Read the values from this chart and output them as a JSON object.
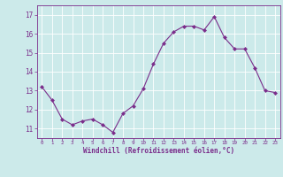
{
  "x": [
    0,
    1,
    2,
    3,
    4,
    5,
    6,
    7,
    8,
    9,
    10,
    11,
    12,
    13,
    14,
    15,
    16,
    17,
    18,
    19,
    20,
    21,
    22,
    23
  ],
  "y": [
    13.2,
    12.5,
    11.5,
    11.2,
    11.4,
    11.5,
    11.2,
    10.8,
    11.8,
    12.2,
    13.1,
    14.4,
    15.5,
    16.1,
    16.4,
    16.4,
    16.2,
    16.9,
    15.8,
    15.2,
    15.2,
    14.2,
    13.0,
    12.9
  ],
  "line_color": "#7b2d8b",
  "marker": "D",
  "marker_size": 2,
  "bg_color": "#cceaea",
  "grid_color": "#b0d8d8",
  "ylim": [
    10.5,
    17.5
  ],
  "yticks": [
    11,
    12,
    13,
    14,
    15,
    16,
    17
  ],
  "xticks": [
    0,
    1,
    2,
    3,
    4,
    5,
    6,
    7,
    8,
    9,
    10,
    11,
    12,
    13,
    14,
    15,
    16,
    17,
    18,
    19,
    20,
    21,
    22,
    23
  ],
  "xlabel": "Windchill (Refroidissement éolien,°C)",
  "axis_color": "#7b2d8b",
  "tick_color": "#7b2d8b",
  "label_color": "#7b2d8b",
  "grid_major_color": "#afd4d4",
  "spine_color": "#7b2d8b"
}
